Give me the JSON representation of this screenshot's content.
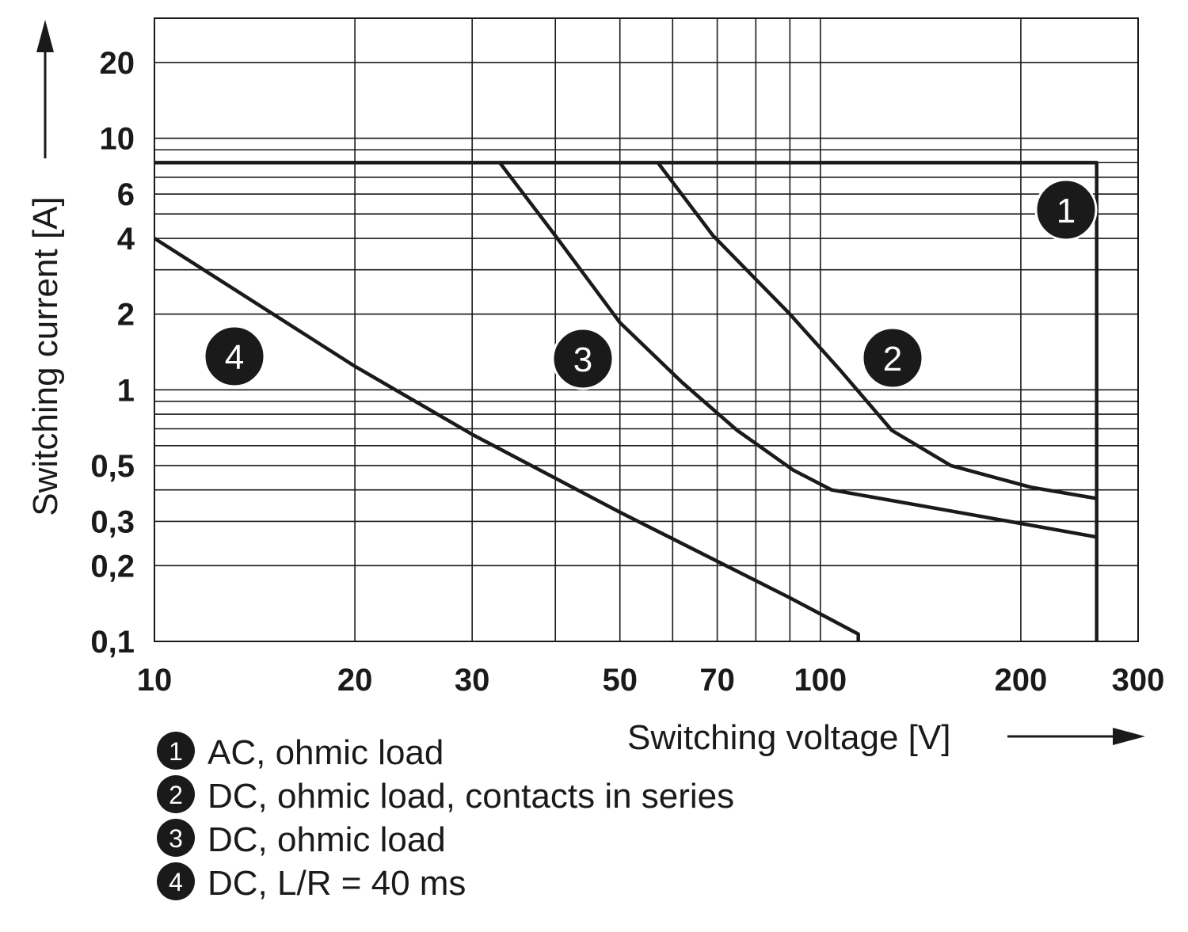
{
  "chart_data": {
    "type": "line",
    "x_label": "Switching voltage [V]",
    "y_label": "Switching current [A]",
    "log_x": true,
    "log_y": true,
    "xlim": [
      10,
      300
    ],
    "ylim": [
      0.1,
      30
    ],
    "xticks": [
      10,
      20,
      30,
      50,
      70,
      100,
      200,
      300
    ],
    "yticks": [
      {
        "value": 0.1,
        "label": "0,1"
      },
      {
        "value": 0.2,
        "label": "0,2"
      },
      {
        "value": 0.3,
        "label": "0,3"
      },
      {
        "value": 0.5,
        "label": "0,5"
      },
      1,
      2,
      4,
      6,
      10,
      20
    ],
    "xgrid": [
      20,
      30,
      40,
      50,
      60,
      70,
      80,
      90,
      100,
      200
    ],
    "ygrid": [
      0.2,
      0.3,
      0.4,
      0.5,
      0.6,
      0.7,
      0.8,
      0.9,
      1,
      2,
      3,
      4,
      5,
      6,
      7,
      8,
      9,
      10,
      20
    ],
    "series": [
      {
        "label": "1",
        "name": "AC, ohmic load",
        "color": "#1a1a1a",
        "x": [
          10,
          260,
          260
        ],
        "values": [
          8,
          8,
          0.1
        ]
      },
      {
        "label": "2",
        "name": "DC, ohmic load, contacts in series",
        "color": "#1a1a1a",
        "x": [
          57,
          69,
          90,
          107,
          128,
          157,
          207,
          260
        ],
        "values": [
          8,
          4.1,
          2,
          1.2,
          0.69,
          0.5,
          0.41,
          0.37
        ]
      },
      {
        "label": "3",
        "name": "DC, ohmic load",
        "color": "#1a1a1a",
        "x": [
          33,
          40,
          50,
          62,
          75,
          91,
          104,
          157,
          260
        ],
        "values": [
          8,
          4.1,
          1.85,
          1.07,
          0.69,
          0.48,
          0.4,
          0.33,
          0.26
        ]
      },
      {
        "label": "4",
        "name": "DC, L/R = 40 ms",
        "color": "#1a1a1a",
        "x": [
          10,
          20,
          30,
          50,
          90,
          114,
          114
        ],
        "values": [
          4,
          1.24,
          0.665,
          0.326,
          0.149,
          0.107,
          0.1
        ]
      }
    ]
  }
}
